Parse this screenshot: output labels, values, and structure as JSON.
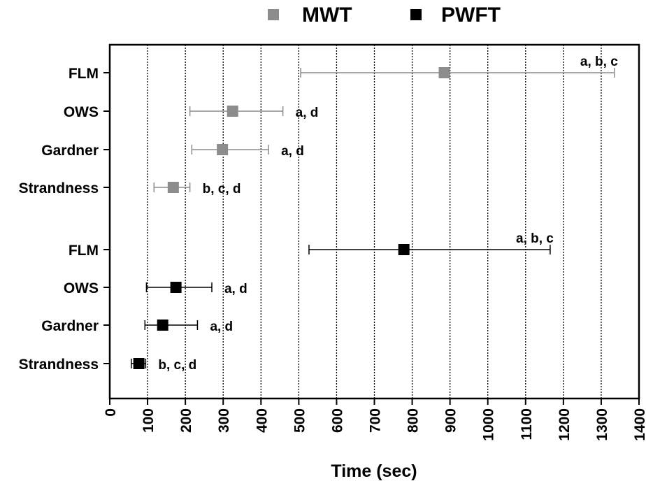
{
  "chart_data": {
    "type": "scatter",
    "subtype": "horizontal error bars (mean with range)",
    "xlabel": "Time (sec)",
    "xlim": [
      0,
      1400
    ],
    "x_ticks": [
      "0",
      "100",
      "200",
      "300",
      "400",
      "500",
      "600",
      "700",
      "800",
      "900",
      "1000",
      "1100",
      "1200",
      "1300",
      "1400"
    ],
    "grid": "vertical dotted lines at each 100",
    "legend": {
      "placement": "top-center",
      "entries": [
        {
          "name": "MWT",
          "color": "#8c8c8c"
        },
        {
          "name": "PWFT",
          "color": "#000000"
        }
      ]
    },
    "series": [
      {
        "name": "MWT",
        "color": "#8c8c8c",
        "points": [
          {
            "label": "FLM",
            "value": 885,
            "low": 505,
            "high": 1335,
            "annotation": "a, b, c"
          },
          {
            "label": "OWS",
            "value": 325,
            "low": 212,
            "high": 458,
            "annotation": "a, d"
          },
          {
            "label": "Gardner",
            "value": 298,
            "low": 217,
            "high": 420,
            "annotation": "a, d"
          },
          {
            "label": "Strandness",
            "value": 168,
            "low": 117,
            "high": 212,
            "annotation": "b, c, d"
          }
        ]
      },
      {
        "name": "PWFT",
        "color": "#000000",
        "points": [
          {
            "label": "FLM",
            "value": 778,
            "low": 527,
            "high": 1165,
            "annotation": "a, b, c"
          },
          {
            "label": "OWS",
            "value": 175,
            "low": 97,
            "high": 270,
            "annotation": "a, d"
          },
          {
            "label": "Gardner",
            "value": 140,
            "low": 93,
            "high": 232,
            "annotation": "a, d"
          },
          {
            "label": "Strandness",
            "value": 77,
            "low": 57,
            "high": 95,
            "annotation": "b, c, d"
          }
        ]
      }
    ]
  }
}
